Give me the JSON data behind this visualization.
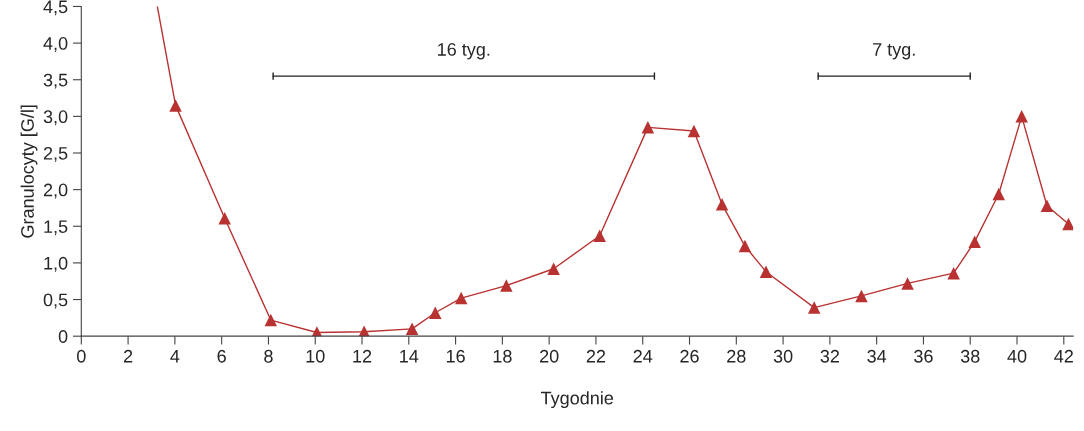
{
  "chart_data": {
    "type": "line",
    "xlabel": "Tygodnie",
    "ylabel": "Granulocyty [G/l]",
    "series": [
      {
        "color": "#b83232",
        "x": [
          3.25,
          4.03
        ],
        "values": [
          4.5,
          3.15
        ]
      },
      {
        "color": "#b83232",
        "marker": "triangle",
        "x": [
          4.03,
          6.13,
          8.1,
          10.07,
          12.09,
          14.14,
          15.13,
          16.24,
          18.17,
          20.19,
          22.16,
          24.22,
          26.19,
          27.39,
          28.37,
          29.27,
          31.33,
          33.35,
          35.32,
          37.29,
          38.19,
          39.22,
          40.2,
          41.28,
          42.2
        ],
        "values": [
          3.15,
          1.61,
          0.22,
          0.05,
          0.06,
          0.1,
          0.32,
          0.52,
          0.69,
          0.92,
          1.37,
          2.85,
          2.8,
          1.8,
          1.23,
          0.88,
          0.39,
          0.55,
          0.72,
          0.86,
          1.29,
          1.94,
          3.0,
          1.78,
          1.53
        ]
      },
      {
        "color": "#222222",
        "x": [
          8.2,
          24.5
        ],
        "values": [
          3.55,
          3.55
        ],
        "errors": [
          0.05,
          0.05
        ]
      },
      {
        "color": "#222222",
        "x": [
          31.5,
          38.0
        ],
        "values": [
          3.55,
          3.55
        ],
        "errors": [
          0.05,
          0.05
        ]
      }
    ],
    "annotations": [
      {
        "text": "16 tyg.",
        "x": 16.35,
        "y": 3.55
      },
      {
        "text": "7 tyg.",
        "x": 34.75,
        "y": 3.55
      }
    ],
    "xlim": [
      0,
      42.4
    ],
    "ylim": [
      0,
      4.5
    ],
    "xticks": [
      0,
      2,
      4,
      6,
      8,
      10,
      12,
      14,
      16,
      18,
      20,
      22,
      24,
      26,
      28,
      30,
      32,
      34,
      36,
      38,
      40,
      42
    ],
    "yticks": [
      0,
      {
        "value": 0.5,
        "label": "0,5"
      },
      {
        "value": 1.0,
        "label": "1,0"
      },
      {
        "value": 1.5,
        "label": "1,5"
      },
      {
        "value": 2.0,
        "label": "2,0"
      },
      {
        "value": 2.5,
        "label": "2,5"
      },
      {
        "value": 3.0,
        "label": "3,0"
      },
      {
        "value": 3.5,
        "label": "3,5"
      },
      {
        "value": 4.0,
        "label": "4,0"
      },
      {
        "value": 4.5,
        "label": "4,5"
      }
    ],
    "grid": false
  }
}
